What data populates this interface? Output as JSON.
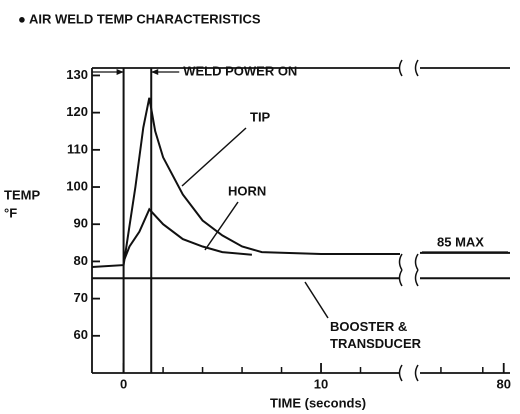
{
  "chart_data": {
    "type": "line",
    "title": "● AIR WELD TEMP CHARACTERISTICS",
    "ylabel": [
      "TEMP",
      "°F"
    ],
    "xlabel": "TIME (seconds)",
    "xlim": [
      -1.6,
      80.3
    ],
    "x_break": [
      14,
      76
    ],
    "ylim": [
      50,
      132
    ],
    "xticks": [
      0,
      10,
      80
    ],
    "xminorticks": [
      2,
      4,
      6,
      8,
      12,
      77,
      79
    ],
    "yticks": [
      60,
      70,
      80,
      90,
      100,
      110,
      120,
      130
    ],
    "series": [
      {
        "name": "TIP",
        "color": "#111111",
        "x": [
          -1.6,
          0,
          0.2,
          0.6,
          1.0,
          1.3,
          1.6,
          2,
          3,
          4,
          5,
          6,
          7,
          10,
          14,
          15,
          76,
          80.3
        ],
        "values": [
          78.5,
          79,
          86,
          100,
          116,
          124,
          115,
          108,
          98,
          91,
          87,
          84,
          82.5,
          82,
          82,
          null,
          82.3,
          82.3
        ]
      },
      {
        "name": "HORN",
        "color": "#111111",
        "x": [
          0,
          0.3,
          0.8,
          1.3,
          2,
          3,
          4,
          5,
          6.5
        ],
        "values": [
          80,
          84,
          88,
          94,
          90,
          86,
          84,
          82.5,
          81.8
        ]
      },
      {
        "name": "BOOSTER & TRANSDUCER",
        "color": "#111111",
        "x": [
          -1.6,
          0,
          14,
          15,
          76,
          80.3
        ],
        "values": [
          75.5,
          75.5,
          75.5,
          null,
          75.5,
          75.5
        ]
      }
    ],
    "weld_power_on": {
      "label": "WELD POWER ON",
      "start": 0,
      "end": 1.4
    },
    "max_label": "85 MAX"
  }
}
